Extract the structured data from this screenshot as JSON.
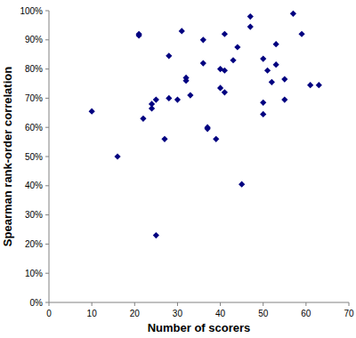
{
  "chart_data": {
    "type": "scatter",
    "x_label": "Number of scorers",
    "y_label": "Spearman rank-order correlation",
    "x": [
      10,
      16,
      21,
      21,
      22,
      24,
      24,
      25,
      25,
      27,
      28,
      28,
      30,
      31,
      32,
      32,
      33,
      36,
      36,
      37,
      37,
      39,
      40,
      40,
      41,
      41,
      41,
      43,
      44,
      45,
      47,
      47,
      50,
      50,
      50,
      51,
      52,
      53,
      53,
      55,
      55,
      57,
      59,
      61,
      63
    ],
    "values": [
      65.5,
      50,
      92,
      91.5,
      63,
      66.5,
      68,
      69.5,
      23,
      56,
      70,
      84.5,
      69.5,
      93,
      77,
      76,
      71,
      90,
      82,
      60,
      59.5,
      56,
      80,
      73.5,
      92,
      79.5,
      72,
      83,
      87.5,
      40.5,
      98,
      94.5,
      83.5,
      68.5,
      64.5,
      79.5,
      75.5,
      88.5,
      81.5,
      76.5,
      69.5,
      99,
      92,
      74.5,
      74.5
    ],
    "color": "#000080",
    "marker": "diamond",
    "xlim": [
      0,
      70
    ],
    "xticks": [
      0,
      10,
      20,
      30,
      40,
      50,
      60,
      70
    ],
    "ylim": [
      0,
      100
    ],
    "yticks": [
      {
        "value": 0,
        "label": "0%"
      },
      {
        "value": 10,
        "label": "10%"
      },
      {
        "value": 20,
        "label": "20%"
      },
      {
        "value": 30,
        "label": "30%"
      },
      {
        "value": 40,
        "label": "40%"
      },
      {
        "value": 50,
        "label": "50%"
      },
      {
        "value": 60,
        "label": "60%"
      },
      {
        "value": 70,
        "label": "70%"
      },
      {
        "value": 80,
        "label": "80%"
      },
      {
        "value": 90,
        "label": "90%"
      },
      {
        "value": 100,
        "label": "100%"
      }
    ],
    "grid": false
  }
}
